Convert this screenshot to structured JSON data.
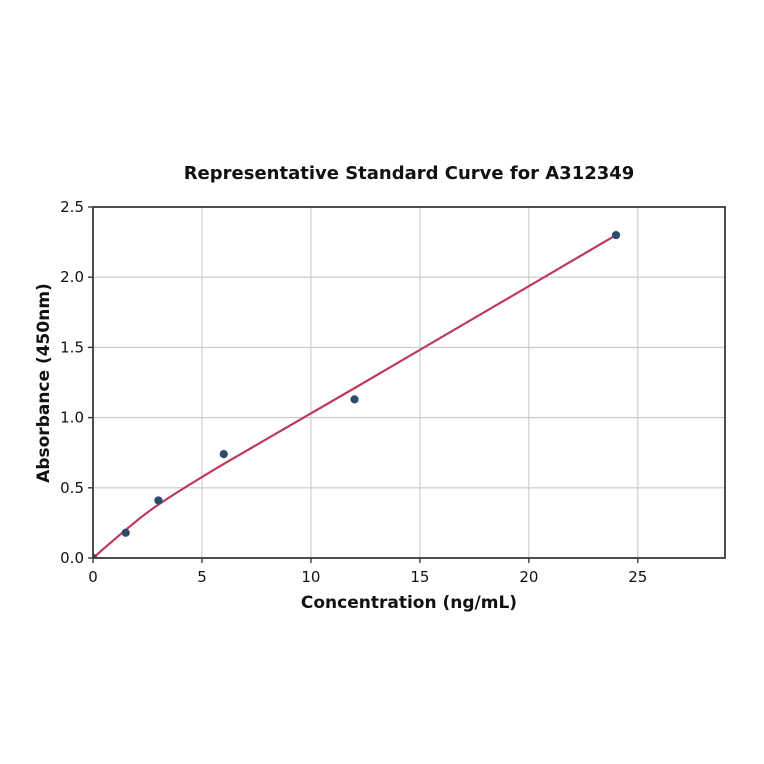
{
  "figure": {
    "background": "#ffffff"
  },
  "chart_data": {
    "type": "scatter",
    "title": "Representative Standard Curve for A312349",
    "xlabel": "Concentration (ng/mL)",
    "ylabel": "Absorbance (450nm)",
    "xlim": [
      0,
      29
    ],
    "ylim": [
      0,
      2.5
    ],
    "x_ticks": [
      "0",
      "5",
      "10",
      "15",
      "20",
      "25"
    ],
    "y_ticks": [
      "0.0",
      "0.5",
      "1.0",
      "1.5",
      "2.0",
      "2.5"
    ],
    "grid": true,
    "legend": "none",
    "series": [
      {
        "name": "standard-points",
        "type": "scatter",
        "x": [
          0,
          1.5,
          3,
          6,
          12,
          24
        ],
        "y": [
          0.0,
          0.18,
          0.41,
          0.74,
          1.13,
          2.3
        ],
        "color": "#2b4a6c",
        "marker": "circle"
      },
      {
        "name": "fit-curve",
        "type": "line",
        "x": [
          0,
          1.5,
          3,
          6,
          12,
          24
        ],
        "y": [
          0.0,
          0.2,
          0.38,
          0.67,
          1.21,
          2.3
        ],
        "color": "#bd3a5e"
      }
    ],
    "colors": {
      "marker": "#2b4a6c",
      "line": "#bd3a5e",
      "grid": "#c9c9c9",
      "spine": "#3a3a3a"
    }
  }
}
